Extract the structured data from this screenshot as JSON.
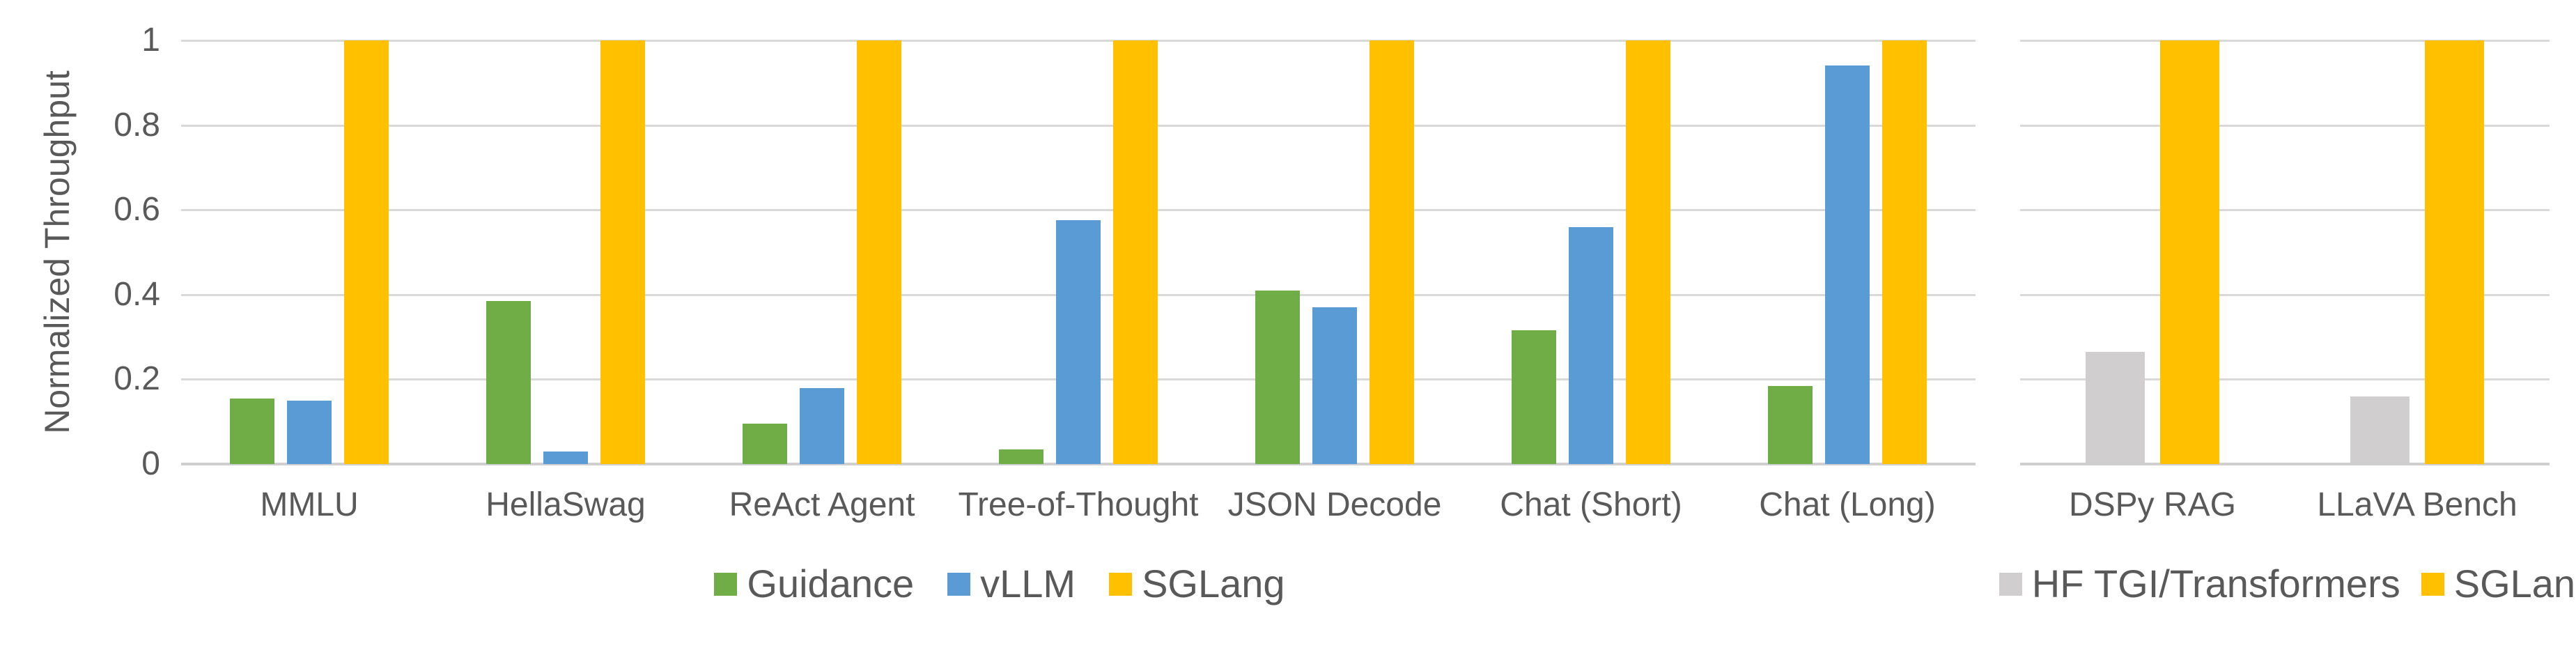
{
  "figure": {
    "background": "#FFFFFF",
    "text_color": "#595959",
    "gridline_color": "#D9D9D9",
    "axis_line_color": "#CFCFCF"
  },
  "chart_data": [
    {
      "type": "bar",
      "title": "",
      "xlabel": "",
      "ylabel": "Normalized Throughput",
      "ylim": [
        0,
        1
      ],
      "y_tick_labels": [
        "1",
        "0.8",
        "0.6",
        "0.4",
        "0.2",
        "0"
      ],
      "grid": true,
      "legend_position": "bottom",
      "categories": [
        "MMLU",
        "HellaSwag",
        "ReAct Agent",
        "Tree-of-Thought",
        "JSON Decode",
        "Chat (Short)",
        "Chat (Long)"
      ],
      "series": [
        {
          "name": "Guidance",
          "color": "#70AD47",
          "values": [
            0.155,
            0.385,
            0.095,
            0.035,
            0.41,
            0.315,
            0.185
          ]
        },
        {
          "name": "vLLM",
          "color": "#5B9BD5",
          "values": [
            0.15,
            0.03,
            0.18,
            0.575,
            0.37,
            0.56,
            0.94
          ]
        },
        {
          "name": "SGLang",
          "color": "#FFC000",
          "values": [
            1,
            1,
            1,
            1,
            1,
            1,
            1
          ]
        }
      ]
    },
    {
      "type": "bar",
      "title": "",
      "xlabel": "",
      "ylabel": "",
      "ylim": [
        0,
        1
      ],
      "y_tick_labels": [],
      "grid": true,
      "legend_position": "bottom",
      "categories": [
        "DSPy RAG",
        "LLaVA Bench"
      ],
      "series": [
        {
          "name": "HF TGI/Transformers",
          "color": "#D0CECE",
          "values": [
            0.265,
            0.16
          ]
        },
        {
          "name": "SGLang",
          "color": "#FFC000",
          "values": [
            1,
            1
          ]
        }
      ]
    }
  ]
}
